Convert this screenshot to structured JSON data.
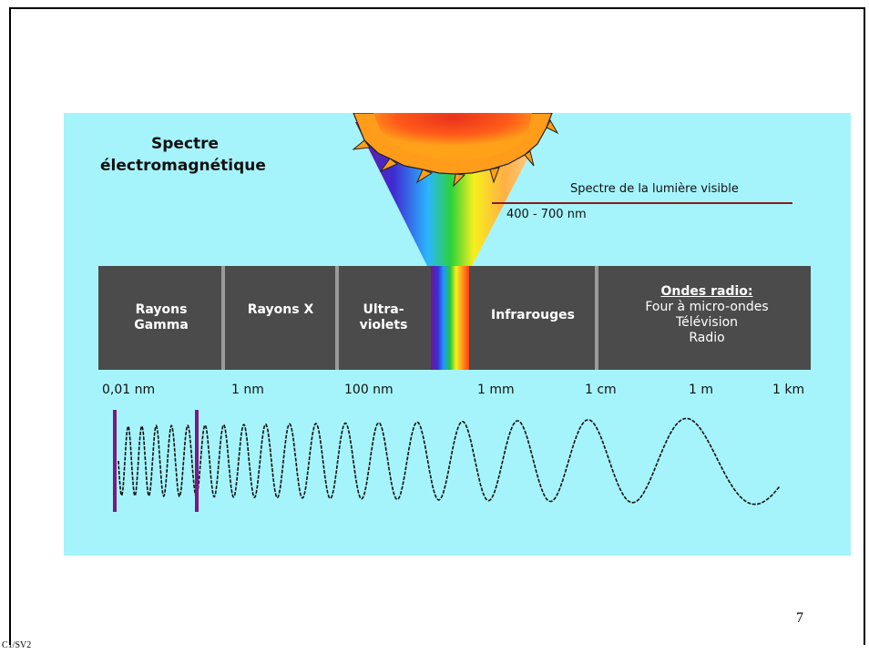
{
  "diagram": {
    "title_line1": "Spectre",
    "title_line2": "électromagnétique",
    "visible_label": "Spectre de la lumière visible",
    "visible_range": "400 - 700 nm",
    "segments": [
      {
        "line1": "Rayons",
        "line2": "Gamma"
      },
      {
        "line1": "Rayons X",
        "line2": ""
      },
      {
        "line1": "Ultra-",
        "line2": "violets"
      },
      {
        "line1": "Infrarouges",
        "line2": ""
      },
      {
        "heading": "Ondes radio:",
        "items": [
          "Four à micro-ondes",
          "Télévision",
          "Radio"
        ]
      }
    ],
    "scale": [
      "0,01 nm",
      "1 nm",
      "100 nm",
      "1 mm",
      "1 cm",
      "1 m",
      "1 km"
    ]
  },
  "colors": {
    "panel": "#a6f4fb",
    "band": "#4b4b4b",
    "marker": "#7b1a86",
    "line": "#8b1a1a"
  },
  "slide": {
    "page_number": "7",
    "footer_code": "C1/SV2"
  }
}
